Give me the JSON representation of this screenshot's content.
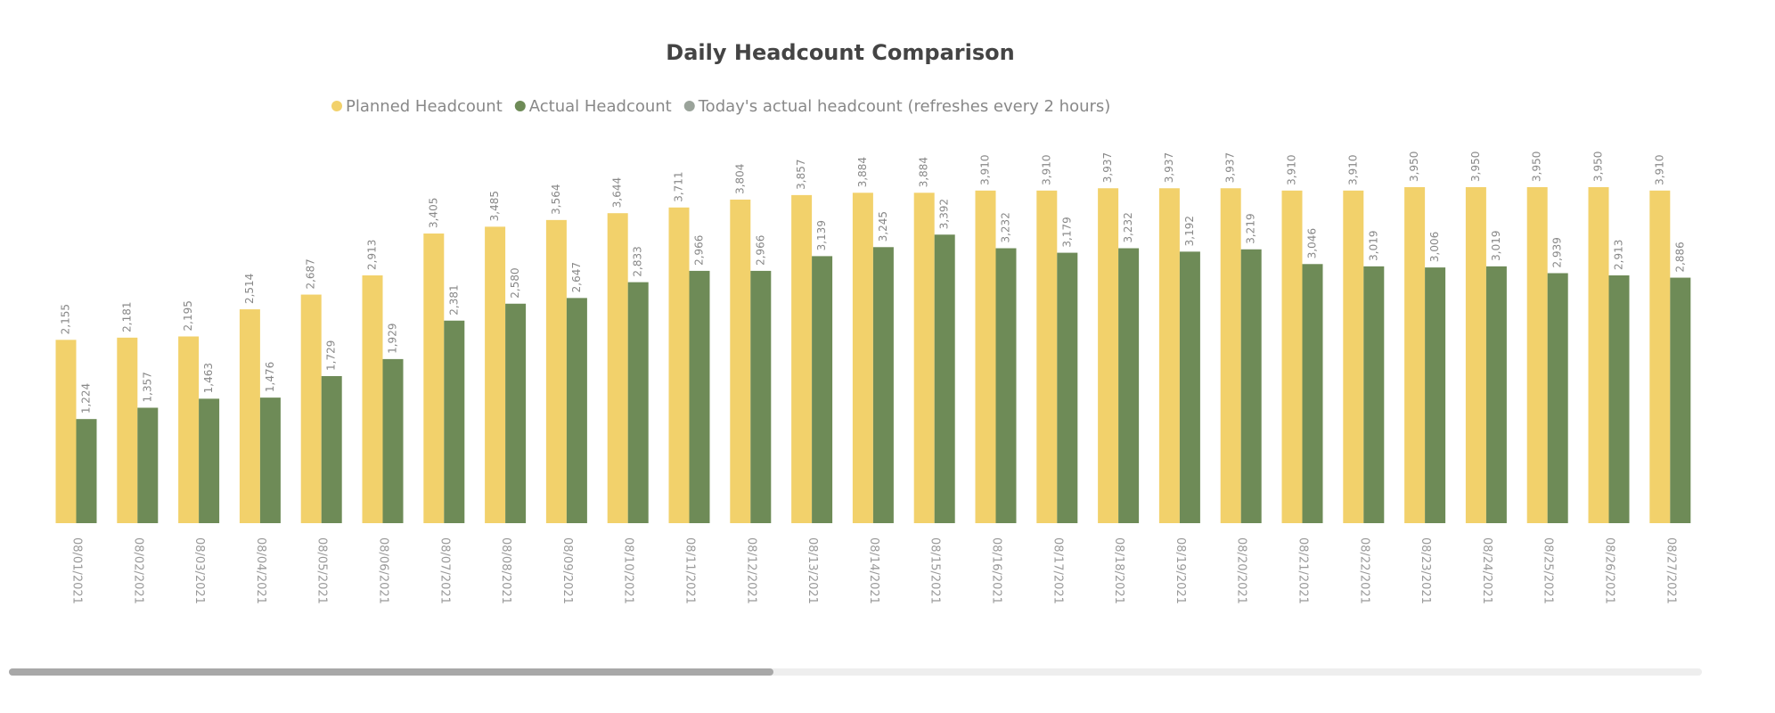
{
  "chart_data": {
    "type": "bar",
    "title": "Daily Headcount Comparison",
    "categories": [
      "08/01/2021",
      "08/02/2021",
      "08/03/2021",
      "08/04/2021",
      "08/05/2021",
      "08/06/2021",
      "08/07/2021",
      "08/08/2021",
      "08/09/2021",
      "08/10/2021",
      "08/11/2021",
      "08/12/2021",
      "08/13/2021",
      "08/14/2021",
      "08/15/2021",
      "08/16/2021",
      "08/17/2021",
      "08/18/2021",
      "08/19/2021",
      "08/20/2021",
      "08/21/2021",
      "08/22/2021",
      "08/23/2021",
      "08/24/2021",
      "08/25/2021",
      "08/26/2021",
      "08/27/2021"
    ],
    "series": [
      {
        "name": "Planned Headcount",
        "color": "#f2d16b",
        "values": [
          2155,
          2181,
          2195,
          2514,
          2687,
          2913,
          3405,
          3485,
          3564,
          3644,
          3711,
          3804,
          3857,
          3884,
          3884,
          3910,
          3910,
          3937,
          3937,
          3937,
          3910,
          3910,
          3950,
          3950,
          3950,
          3950,
          3910
        ],
        "value_labels": [
          "2,155",
          "2,181",
          "2,195",
          "2,514",
          "2,687",
          "2,913",
          "3,405",
          "3,485",
          "3,564",
          "3,644",
          "3,711",
          "3,804",
          "3,857",
          "3,884",
          "3,884",
          "3,910",
          "3,910",
          "3,937",
          "3,937",
          "3,937",
          "3,910",
          "3,910",
          "3,950",
          "3,950",
          "3,950",
          "3,950",
          "3,910"
        ]
      },
      {
        "name": "Actual Headcount",
        "color": "#6e8b57",
        "values": [
          1224,
          1357,
          1463,
          1476,
          1729,
          1929,
          2381,
          2580,
          2647,
          2833,
          2966,
          2966,
          3139,
          3245,
          3392,
          3232,
          3179,
          3232,
          3192,
          3219,
          3046,
          3019,
          3006,
          3019,
          2939,
          2913,
          2886
        ],
        "value_labels": [
          "1,224",
          "1,357",
          "1,463",
          "1,476",
          "1,729",
          "1,929",
          "2,381",
          "2,580",
          "2,647",
          "2,833",
          "2,966",
          "2,966",
          "3,139",
          "3,245",
          "3,392",
          "3,232",
          "3,179",
          "3,232",
          "3,192",
          "3,219",
          "3,046",
          "3,019",
          "3,006",
          "3,019",
          "2,939",
          "2,913",
          "2,886"
        ]
      },
      {
        "name": "Today's actual headcount (refreshes every 2 hours)",
        "color": "#9aa39a",
        "values": [
          null,
          null,
          null,
          null,
          null,
          null,
          null,
          null,
          null,
          null,
          null,
          null,
          null,
          null,
          null,
          null,
          null,
          null,
          null,
          null,
          null,
          null,
          null,
          null,
          null,
          null,
          null
        ]
      }
    ],
    "legend": "top"
  }
}
